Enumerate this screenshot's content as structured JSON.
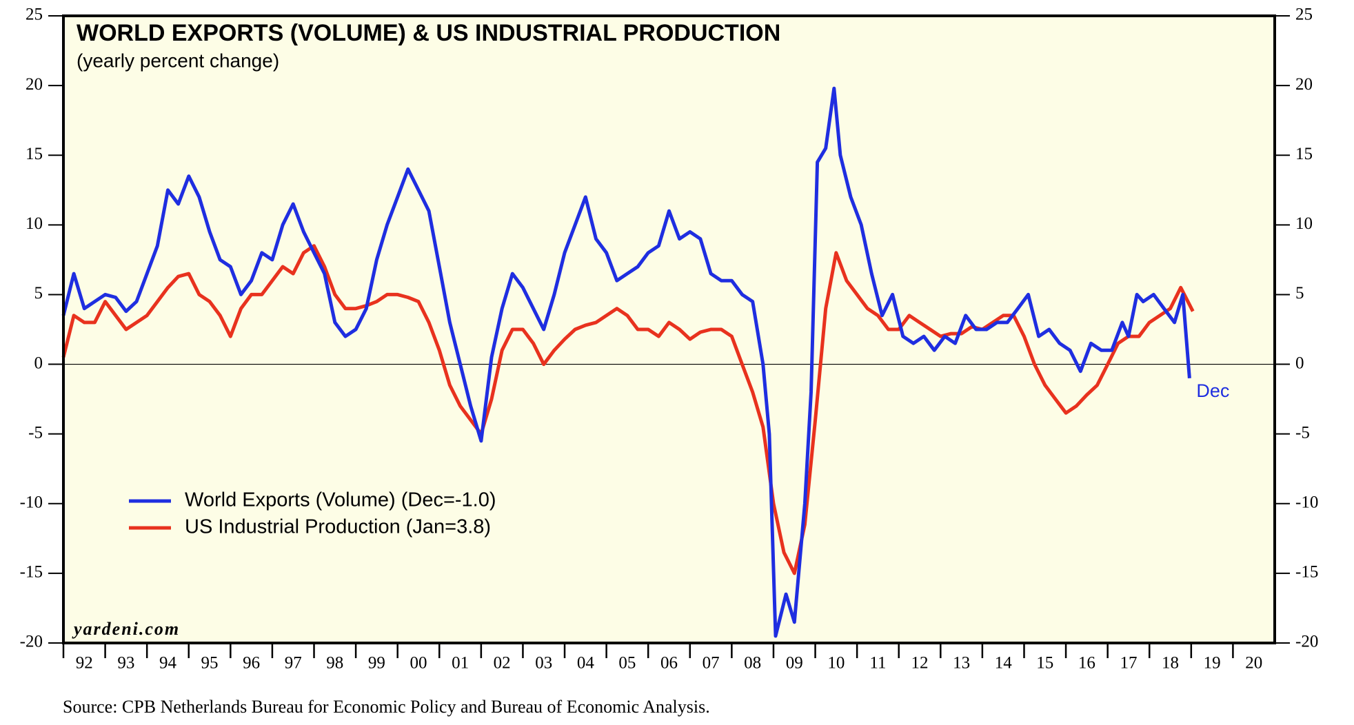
{
  "chart_data": {
    "type": "line",
    "title": "WORLD EXPORTS (VOLUME) & US INDUSTRIAL PRODUCTION",
    "subtitle": "(yearly percent change)",
    "annotation": "Dec",
    "watermark": "yardeni.com",
    "source": "Source: CPB Netherlands Bureau for Economic Policy and Bureau of Economic Analysis.",
    "legend": "lower left",
    "xlim": [
      1992,
      2021
    ],
    "xticks": [
      {
        "value": 1992,
        "label": "92"
      },
      {
        "value": 1993,
        "label": "93"
      },
      {
        "value": 1994,
        "label": "94"
      },
      {
        "value": 1995,
        "label": "95"
      },
      {
        "value": 1996,
        "label": "96"
      },
      {
        "value": 1997,
        "label": "97"
      },
      {
        "value": 1998,
        "label": "98"
      },
      {
        "value": 1999,
        "label": "99"
      },
      {
        "value": 2000,
        "label": "00"
      },
      {
        "value": 2001,
        "label": "01"
      },
      {
        "value": 2002,
        "label": "02"
      },
      {
        "value": 2003,
        "label": "03"
      },
      {
        "value": 2004,
        "label": "04"
      },
      {
        "value": 2005,
        "label": "05"
      },
      {
        "value": 2006,
        "label": "06"
      },
      {
        "value": 2007,
        "label": "07"
      },
      {
        "value": 2008,
        "label": "08"
      },
      {
        "value": 2009,
        "label": "09"
      },
      {
        "value": 2010,
        "label": "10"
      },
      {
        "value": 2011,
        "label": "11"
      },
      {
        "value": 2012,
        "label": "12"
      },
      {
        "value": 2013,
        "label": "13"
      },
      {
        "value": 2014,
        "label": "14"
      },
      {
        "value": 2015,
        "label": "15"
      },
      {
        "value": 2016,
        "label": "16"
      },
      {
        "value": 2017,
        "label": "17"
      },
      {
        "value": 2018,
        "label": "18"
      },
      {
        "value": 2019,
        "label": "19"
      },
      {
        "value": 2020,
        "label": "20"
      }
    ],
    "ylim": [
      -20,
      25
    ],
    "yticks": [
      -20,
      -15,
      -10,
      -5,
      0,
      5,
      10,
      15,
      20,
      25
    ],
    "series": [
      {
        "name": "World Exports (Volume) (Dec=-1.0)",
        "color": "#1f2ee0",
        "x": [
          1992,
          1992.25,
          1992.5,
          1992.75,
          1993,
          1993.25,
          1993.5,
          1993.75,
          1994,
          1994.25,
          1994.5,
          1994.75,
          1995,
          1995.25,
          1995.5,
          1995.75,
          1996,
          1996.25,
          1996.5,
          1996.75,
          1997,
          1997.25,
          1997.5,
          1997.75,
          1998,
          1998.25,
          1998.5,
          1998.75,
          1999,
          1999.25,
          1999.5,
          1999.75,
          2000,
          2000.25,
          2000.5,
          2000.75,
          2001,
          2001.25,
          2001.5,
          2001.75,
          2002,
          2002.25,
          2002.5,
          2002.75,
          2003,
          2003.25,
          2003.5,
          2003.75,
          2004,
          2004.25,
          2004.5,
          2004.75,
          2005,
          2005.25,
          2005.5,
          2005.75,
          2006,
          2006.25,
          2006.5,
          2006.75,
          2007,
          2007.25,
          2007.5,
          2007.75,
          2008,
          2008.25,
          2008.5,
          2008.75,
          2008.9,
          2009.05,
          2009.3,
          2009.5,
          2009.75,
          2009.9,
          2010.05,
          2010.25,
          2010.45,
          2010.6,
          2010.85,
          2011.1,
          2011.35,
          2011.6,
          2011.85,
          2012.1,
          2012.35,
          2012.6,
          2012.85,
          2013.1,
          2013.35,
          2013.6,
          2013.85,
          2014.1,
          2014.35,
          2014.6,
          2014.85,
          2015.1,
          2015.35,
          2015.6,
          2015.85,
          2016.1,
          2016.35,
          2016.6,
          2016.85,
          2017.1,
          2017.35,
          2017.5,
          2017.7,
          2017.85,
          2018.1,
          2018.35,
          2018.6,
          2018.8,
          2018.96
        ],
        "values": [
          3.5,
          6.5,
          4,
          4.5,
          5,
          4.8,
          3.8,
          4.5,
          6.5,
          8.5,
          12.5,
          11.5,
          13.5,
          12,
          9.5,
          7.5,
          7,
          5,
          6,
          8,
          7.5,
          10,
          11.5,
          9.5,
          8,
          6.5,
          3,
          2,
          2.5,
          4,
          7.5,
          10,
          12,
          14,
          12.5,
          11,
          7,
          3,
          0,
          -3,
          -5.5,
          0.5,
          4,
          6.5,
          5.5,
          4,
          2.5,
          5,
          8,
          10,
          12,
          9,
          8,
          6,
          6.5,
          7,
          8,
          8.5,
          11,
          9,
          9.5,
          9,
          6.5,
          6,
          6,
          5,
          4.5,
          0,
          -5,
          -19.5,
          -16.5,
          -18.5,
          -10,
          -2,
          14.5,
          15.5,
          19.8,
          15,
          12,
          10,
          6.5,
          3.5,
          5,
          2,
          1.5,
          2,
          1,
          2,
          1.5,
          3.5,
          2.5,
          2.5,
          3,
          3,
          4,
          5,
          2,
          2.5,
          1.5,
          1,
          -0.5,
          1.5,
          1,
          1,
          3,
          2,
          5,
          4.5,
          5,
          4,
          3,
          5,
          -1.0
        ]
      },
      {
        "name": "US Industrial Production (Jan=3.8)",
        "color": "#e8321e",
        "x": [
          1992,
          1992.25,
          1992.5,
          1992.75,
          1993,
          1993.25,
          1993.5,
          1993.75,
          1994,
          1994.25,
          1994.5,
          1994.75,
          1995,
          1995.25,
          1995.5,
          1995.75,
          1996,
          1996.25,
          1996.5,
          1996.75,
          1997,
          1997.25,
          1997.5,
          1997.75,
          1998,
          1998.25,
          1998.5,
          1998.75,
          1999,
          1999.25,
          1999.5,
          1999.75,
          2000,
          2000.25,
          2000.5,
          2000.75,
          2001,
          2001.25,
          2001.5,
          2001.75,
          2002,
          2002.25,
          2002.5,
          2002.75,
          2003,
          2003.25,
          2003.5,
          2003.75,
          2004,
          2004.25,
          2004.5,
          2004.75,
          2005,
          2005.25,
          2005.5,
          2005.75,
          2006,
          2006.25,
          2006.5,
          2006.75,
          2007,
          2007.25,
          2007.5,
          2007.75,
          2008,
          2008.25,
          2008.5,
          2008.75,
          2009,
          2009.25,
          2009.5,
          2009.75,
          2010,
          2010.25,
          2010.5,
          2010.75,
          2011,
          2011.25,
          2011.5,
          2011.75,
          2012,
          2012.25,
          2012.5,
          2012.75,
          2013,
          2013.25,
          2013.5,
          2013.75,
          2014,
          2014.25,
          2014.5,
          2014.75,
          2015,
          2015.25,
          2015.5,
          2015.75,
          2016,
          2016.25,
          2016.5,
          2016.75,
          2017,
          2017.25,
          2017.5,
          2017.75,
          2018,
          2018.25,
          2018.5,
          2018.75,
          2019.04
        ],
        "values": [
          0.5,
          3.5,
          3,
          3,
          4.5,
          3.5,
          2.5,
          3,
          3.5,
          4.5,
          5.5,
          6.3,
          6.5,
          5,
          4.5,
          3.5,
          2,
          4,
          5,
          5,
          6,
          7,
          6.5,
          8,
          8.5,
          7,
          5,
          4,
          4,
          4.2,
          4.5,
          5,
          5,
          4.8,
          4.5,
          3,
          1,
          -1.5,
          -3,
          -4,
          -5,
          -2.5,
          1,
          2.5,
          2.5,
          1.5,
          0,
          1,
          1.8,
          2.5,
          2.8,
          3,
          3.5,
          4,
          3.5,
          2.5,
          2.5,
          2,
          3,
          2.5,
          1.8,
          2.3,
          2.5,
          2.5,
          2,
          0,
          -2,
          -4.5,
          -10,
          -13.5,
          -15,
          -11.5,
          -4,
          4,
          8,
          6,
          5,
          4,
          3.5,
          2.5,
          2.5,
          3.5,
          3,
          2.5,
          2,
          2.2,
          2.2,
          2.7,
          2.5,
          3,
          3.5,
          3.5,
          2,
          0,
          -1.5,
          -2.5,
          -3.5,
          -3,
          -2.2,
          -1.5,
          0,
          1.5,
          2,
          2,
          3,
          3.5,
          4,
          5.5,
          3.8
        ]
      }
    ]
  }
}
